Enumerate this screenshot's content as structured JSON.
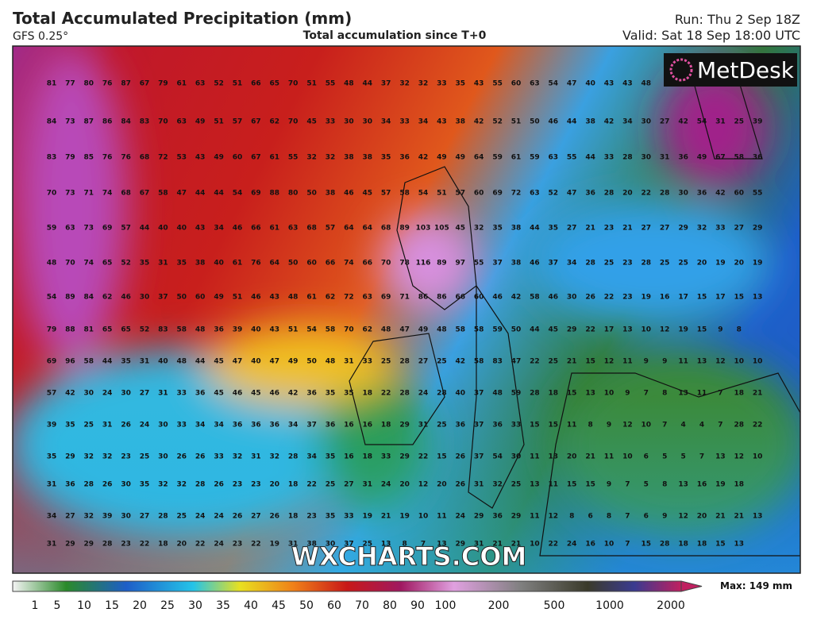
{
  "header": {
    "title": "Total Accumulated Precipitation (mm)",
    "model": "GFS 0.25°",
    "subtitle": "Total accumulation since T+0",
    "run": "Run: Thu 2 Sep 18Z",
    "valid": "Valid: Sat 18 Sep 18:00 UTC"
  },
  "logo": "MetDesk",
  "watermark": "WXCHARTS.COM",
  "grid_values": [
    [
      81,
      77,
      80,
      76,
      87,
      67,
      79,
      61,
      63,
      52,
      51,
      66,
      65,
      70,
      51,
      55,
      48,
      44,
      37,
      32,
      32,
      33,
      35,
      43,
      55,
      60,
      63,
      54,
      47,
      40,
      43,
      43,
      48
    ],
    [
      84,
      73,
      87,
      86,
      84,
      83,
      70,
      63,
      49,
      51,
      57,
      67,
      62,
      70,
      45,
      33,
      30,
      30,
      34,
      33,
      34,
      43,
      38,
      42,
      52,
      51,
      50,
      46,
      44,
      38,
      42,
      34,
      30,
      27,
      42,
      54,
      31,
      25,
      39
    ],
    [
      83,
      79,
      85,
      76,
      76,
      68,
      72,
      53,
      43,
      49,
      60,
      67,
      61,
      55,
      32,
      32,
      38,
      38,
      35,
      36,
      42,
      49,
      49,
      64,
      59,
      61,
      59,
      63,
      55,
      44,
      33,
      28,
      30,
      31,
      36,
      49,
      67,
      58,
      36
    ],
    [
      70,
      73,
      71,
      74,
      68,
      67,
      58,
      47,
      44,
      44,
      54,
      69,
      88,
      80,
      50,
      38,
      46,
      45,
      57,
      58,
      54,
      51,
      57,
      60,
      69,
      72,
      63,
      52,
      47,
      36,
      28,
      20,
      22,
      28,
      30,
      36,
      42,
      60,
      55
    ],
    [
      59,
      63,
      73,
      69,
      57,
      44,
      40,
      40,
      43,
      34,
      46,
      66,
      61,
      63,
      68,
      57,
      64,
      64,
      68,
      89,
      103,
      105,
      45,
      32,
      35,
      38,
      44,
      35,
      27,
      21,
      23,
      21,
      27,
      27,
      29,
      32,
      33,
      27,
      29
    ],
    [
      48,
      70,
      74,
      65,
      52,
      35,
      31,
      35,
      38,
      40,
      61,
      76,
      64,
      50,
      60,
      66,
      74,
      66,
      70,
      78,
      116,
      89,
      97,
      55,
      37,
      38,
      46,
      37,
      34,
      28,
      25,
      23,
      28,
      25,
      25,
      20,
      19,
      20,
      19
    ],
    [
      54,
      89,
      84,
      62,
      46,
      30,
      37,
      50,
      60,
      49,
      51,
      46,
      43,
      48,
      61,
      62,
      72,
      63,
      69,
      71,
      86,
      86,
      66,
      60,
      46,
      42,
      58,
      46,
      30,
      26,
      22,
      23,
      19,
      16,
      17,
      15,
      17,
      15,
      13
    ],
    [
      79,
      88,
      81,
      65,
      65,
      52,
      83,
      58,
      48,
      36,
      39,
      40,
      43,
      51,
      54,
      58,
      70,
      62,
      48,
      47,
      49,
      48,
      58,
      58,
      59,
      50,
      44,
      45,
      29,
      22,
      17,
      13,
      10,
      12,
      19,
      15,
      9,
      8
    ],
    [
      69,
      96,
      58,
      44,
      35,
      31,
      40,
      48,
      44,
      45,
      47,
      40,
      47,
      49,
      50,
      48,
      31,
      33,
      25,
      28,
      27,
      25,
      42,
      58,
      83,
      47,
      22,
      25,
      21,
      15,
      12,
      11,
      9,
      9,
      11,
      13,
      12,
      10,
      10
    ],
    [
      57,
      42,
      30,
      24,
      30,
      27,
      31,
      33,
      36,
      45,
      46,
      45,
      46,
      42,
      36,
      35,
      35,
      18,
      22,
      28,
      24,
      28,
      40,
      37,
      48,
      59,
      28,
      18,
      15,
      13,
      10,
      9,
      7,
      8,
      13,
      11,
      7,
      18,
      21
    ],
    [
      39,
      35,
      25,
      31,
      26,
      24,
      30,
      33,
      34,
      34,
      36,
      36,
      36,
      34,
      37,
      36,
      16,
      16,
      18,
      29,
      31,
      25,
      36,
      37,
      36,
      33,
      15,
      15,
      11,
      8,
      9,
      12,
      10,
      7,
      4,
      4,
      7,
      28,
      22
    ],
    [
      35,
      29,
      32,
      32,
      23,
      25,
      30,
      26,
      26,
      33,
      32,
      31,
      32,
      28,
      34,
      35,
      16,
      18,
      33,
      29,
      22,
      15,
      26,
      37,
      54,
      30,
      11,
      13,
      20,
      21,
      11,
      10,
      6,
      5,
      5,
      7,
      13,
      12,
      10
    ],
    [
      31,
      36,
      28,
      26,
      30,
      35,
      32,
      32,
      28,
      26,
      23,
      23,
      20,
      18,
      22,
      25,
      27,
      31,
      24,
      20,
      12,
      20,
      26,
      31,
      32,
      25,
      13,
      11,
      15,
      15,
      9,
      7,
      5,
      8,
      13,
      16,
      19,
      18
    ],
    [
      34,
      27,
      32,
      39,
      30,
      27,
      28,
      25,
      24,
      24,
      26,
      27,
      26,
      18,
      23,
      35,
      33,
      19,
      21,
      19,
      10,
      11,
      24,
      29,
      36,
      29,
      11,
      12,
      8,
      6,
      8,
      7,
      6,
      9,
      12,
      20,
      21,
      21,
      13
    ],
    [
      31,
      29,
      29,
      28,
      23,
      22,
      18,
      20,
      22,
      24,
      23,
      22,
      19,
      31,
      38,
      30,
      37,
      25,
      13,
      8,
      7,
      13,
      29,
      31,
      21,
      21,
      10,
      22,
      24,
      16,
      10,
      7,
      15,
      28,
      18,
      18,
      15,
      13
    ]
  ],
  "colorbar": {
    "labels": [
      1,
      5,
      10,
      15,
      20,
      25,
      30,
      35,
      40,
      45,
      50,
      60,
      70,
      80,
      90,
      100,
      200,
      500,
      1000,
      2000
    ],
    "max_label": "Max: 149 mm"
  }
}
